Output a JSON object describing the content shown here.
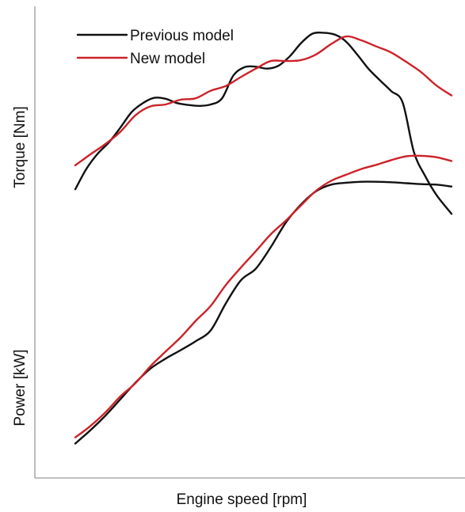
{
  "chart_data": {
    "type": "line",
    "title": "",
    "xlabel": "Engine speed [rpm]",
    "ylabel_top": "Torque [Nm]",
    "ylabel_bottom": "Power [kW]",
    "x_ticks": "none",
    "y_ticks": "none",
    "grid": false,
    "legend_position": "top-left",
    "x_range": [
      0,
      100
    ],
    "y_range": [
      0,
      100
    ],
    "series": [
      {
        "name": "Previous model",
        "color": "#111111",
        "groups": [
          {
            "quantity": "Torque",
            "x": [
              0,
              3,
              6,
              9,
              12,
              15,
              18,
              21,
              24,
              27,
              30,
              33,
              36,
              39,
              42,
              45,
              48,
              51,
              54,
              57,
              60,
              63,
              66,
              69,
              72,
              75,
              78,
              81,
              84,
              87,
              90,
              93,
              96,
              100
            ],
            "y": [
              61.2,
              65.6,
              68.8,
              71.2,
              74.3,
              77.6,
              79.5,
              80.6,
              80.4,
              79.5,
              79.1,
              78.9,
              79.2,
              80.5,
              85.3,
              87.1,
              87.2,
              86.8,
              87.4,
              89.4,
              92.2,
              94.2,
              94.4,
              94.0,
              92.5,
              89.7,
              86.7,
              84.3,
              82.0,
              79.6,
              69.1,
              64.0,
              60.0,
              56.0
            ]
          },
          {
            "quantity": "Power",
            "x": [
              0,
              4,
              8,
              12,
              16,
              20,
              24,
              28,
              32,
              36,
              40,
              44,
              48,
              52,
              56,
              60,
              64,
              68,
              72,
              76,
              80,
              84,
              88,
              92,
              96,
              100
            ],
            "y": [
              7.3,
              10.1,
              13.2,
              16.7,
              20.2,
              23.2,
              25.3,
              27.1,
              29.0,
              31.3,
              37.0,
              41.9,
              44.4,
              49.0,
              54.2,
              58.0,
              60.8,
              62.2,
              62.6,
              62.8,
              62.8,
              62.7,
              62.5,
              62.3,
              62.2,
              61.8
            ]
          }
        ]
      },
      {
        "name": "New model",
        "color": "#cc2229",
        "groups": [
          {
            "quantity": "Torque",
            "x": [
              0,
              4,
              8,
              12,
              16,
              20,
              24,
              28,
              32,
              36,
              40,
              44,
              48,
              52,
              56,
              60,
              64,
              68,
              72,
              76,
              80,
              84,
              88,
              92,
              96,
              100
            ],
            "y": [
              66.3,
              68.6,
              70.8,
              73.4,
              76.9,
              78.8,
              79.2,
              80.2,
              80.5,
              82.1,
              83.1,
              85.0,
              86.8,
              88.4,
              88.4,
              88.6,
              89.8,
              92.0,
              93.6,
              92.8,
              91.5,
              90.2,
              88.2,
              86.0,
              83.2,
              81.1
            ]
          },
          {
            "quantity": "Power",
            "x": [
              0,
              4,
              8,
              12,
              16,
              20,
              24,
              28,
              32,
              36,
              40,
              44,
              48,
              52,
              56,
              60,
              64,
              68,
              72,
              76,
              80,
              84,
              88,
              92,
              96,
              100
            ],
            "y": [
              8.6,
              11.0,
              13.9,
              17.3,
              20.1,
              23.7,
              26.8,
              29.8,
              33.3,
              36.5,
              40.9,
              44.6,
              48.1,
              51.7,
              54.6,
              57.8,
              60.9,
              63.0,
              64.3,
              65.5,
              66.4,
              67.4,
              68.2,
              68.3,
              68.0,
              67.2
            ]
          }
        ]
      }
    ]
  }
}
